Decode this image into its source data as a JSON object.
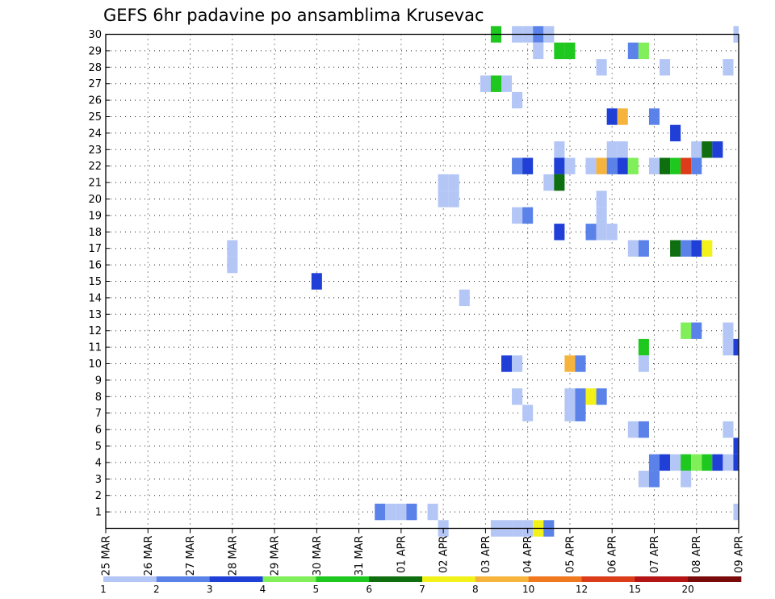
{
  "chart_data": {
    "type": "heatmap",
    "title": "GEFS 6hr padavine po ansamblima Krusevac",
    "xlabel": "",
    "ylabel": "",
    "x_start": "2025-03-25T00",
    "x_end": "2025-04-09T00",
    "x_step_hours": 6,
    "x_tick_labels": [
      "25 MAR",
      "26 MAR",
      "27 MAR",
      "28 MAR",
      "29 MAR",
      "30 MAR",
      "31 MAR",
      "01 APR",
      "02 APR",
      "03 APR",
      "04 APR",
      "05 APR",
      "06 APR",
      "07 APR",
      "08 APR",
      "09 APR"
    ],
    "y_tick_labels": [
      "1",
      "2",
      "3",
      "4",
      "5",
      "6",
      "7",
      "8",
      "9",
      "10",
      "11",
      "12",
      "13",
      "14",
      "15",
      "16",
      "17",
      "18",
      "19",
      "20",
      "21",
      "22",
      "23",
      "24",
      "25",
      "26",
      "27",
      "28",
      "29",
      "30"
    ],
    "ylim": [
      0,
      30
    ],
    "grid": true,
    "colorbar": {
      "labels": [
        "1",
        "2",
        "3",
        "4",
        "5",
        "6",
        "7",
        "8",
        "10",
        "12",
        "15",
        "20"
      ],
      "colors": [
        "#b3c6f5",
        "#5a82e8",
        "#1f3fd6",
        "#80ef5a",
        "#1ec81e",
        "#0f6e0f",
        "#f2f21a",
        "#f7b43c",
        "#f0781e",
        "#dc3c19",
        "#b41414",
        "#780a0a"
      ]
    },
    "cells": [
      [
        "2025-04-03T06",
        30,
        "#1ec81e"
      ],
      [
        "2025-04-03T18",
        30,
        "#b3c6f5"
      ],
      [
        "2025-04-04T00",
        30,
        "#b3c6f5"
      ],
      [
        "2025-04-04T06",
        30,
        "#5a82e8"
      ],
      [
        "2025-04-04T12",
        30,
        "#b3c6f5"
      ],
      [
        "2025-04-09T00",
        30,
        "#b3c6f5"
      ],
      [
        "2025-04-04T06",
        29,
        "#b3c6f5"
      ],
      [
        "2025-04-04T18",
        29,
        "#1ec81e"
      ],
      [
        "2025-04-05T00",
        29,
        "#1ec81e"
      ],
      [
        "2025-04-06T12",
        29,
        "#5a82e8"
      ],
      [
        "2025-04-06T18",
        29,
        "#80ef5a"
      ],
      [
        "2025-04-05T18",
        28,
        "#b3c6f5"
      ],
      [
        "2025-04-07T06",
        28,
        "#b3c6f5"
      ],
      [
        "2025-04-08T18",
        28,
        "#b3c6f5"
      ],
      [
        "2025-04-03T00",
        27,
        "#b3c6f5"
      ],
      [
        "2025-04-03T06",
        27,
        "#1ec81e"
      ],
      [
        "2025-04-03T12",
        27,
        "#b3c6f5"
      ],
      [
        "2025-04-03T18",
        26,
        "#b3c6f5"
      ],
      [
        "2025-04-06T00",
        25,
        "#1f3fd6"
      ],
      [
        "2025-04-06T06",
        25,
        "#f7b43c"
      ],
      [
        "2025-04-07T00",
        25,
        "#5a82e8"
      ],
      [
        "2025-04-07T12",
        24,
        "#1f3fd6"
      ],
      [
        "2025-04-04T18",
        23,
        "#b3c6f5"
      ],
      [
        "2025-04-06T00",
        23,
        "#b3c6f5"
      ],
      [
        "2025-04-06T06",
        23,
        "#b3c6f5"
      ],
      [
        "2025-04-08T00",
        23,
        "#b3c6f5"
      ],
      [
        "2025-04-08T06",
        23,
        "#0f6e0f"
      ],
      [
        "2025-04-08T12",
        23,
        "#1f3fd6"
      ],
      [
        "2025-04-03T18",
        22,
        "#5a82e8"
      ],
      [
        "2025-04-04T00",
        22,
        "#1f3fd6"
      ],
      [
        "2025-04-04T18",
        22,
        "#1f3fd6"
      ],
      [
        "2025-04-05T00",
        22,
        "#b3c6f5"
      ],
      [
        "2025-04-05T12",
        22,
        "#b3c6f5"
      ],
      [
        "2025-04-05T18",
        22,
        "#f7b43c"
      ],
      [
        "2025-04-06T00",
        22,
        "#5a82e8"
      ],
      [
        "2025-04-06T06",
        22,
        "#1f3fd6"
      ],
      [
        "2025-04-06T12",
        22,
        "#80ef5a"
      ],
      [
        "2025-04-07T00",
        22,
        "#b3c6f5"
      ],
      [
        "2025-04-07T06",
        22,
        "#0f6e0f"
      ],
      [
        "2025-04-07T12",
        22,
        "#1ec81e"
      ],
      [
        "2025-04-07T18",
        22,
        "#dc3c19"
      ],
      [
        "2025-04-08T00",
        22,
        "#5a82e8"
      ],
      [
        "2025-04-02T00",
        21,
        "#b3c6f5"
      ],
      [
        "2025-04-02T06",
        21,
        "#b3c6f5"
      ],
      [
        "2025-04-04T12",
        21,
        "#b3c6f5"
      ],
      [
        "2025-04-04T18",
        21,
        "#0f6e0f"
      ],
      [
        "2025-04-02T00",
        20,
        "#b3c6f5"
      ],
      [
        "2025-04-02T06",
        20,
        "#b3c6f5"
      ],
      [
        "2025-04-05T18",
        20,
        "#b3c6f5"
      ],
      [
        "2025-04-03T18",
        19,
        "#b3c6f5"
      ],
      [
        "2025-04-04T00",
        19,
        "#5a82e8"
      ],
      [
        "2025-04-05T18",
        19,
        "#b3c6f5"
      ],
      [
        "2025-04-04T18",
        18,
        "#1f3fd6"
      ],
      [
        "2025-04-05T12",
        18,
        "#5a82e8"
      ],
      [
        "2025-04-05T18",
        18,
        "#b3c6f5"
      ],
      [
        "2025-04-06T00",
        18,
        "#b3c6f5"
      ],
      [
        "2025-03-28T00",
        17,
        "#b3c6f5"
      ],
      [
        "2025-04-06T12",
        17,
        "#b3c6f5"
      ],
      [
        "2025-04-06T18",
        17,
        "#5a82e8"
      ],
      [
        "2025-04-07T12",
        17,
        "#0f6e0f"
      ],
      [
        "2025-04-07T18",
        17,
        "#5a82e8"
      ],
      [
        "2025-04-08T00",
        17,
        "#1f3fd6"
      ],
      [
        "2025-04-08T06",
        17,
        "#f2f21a"
      ],
      [
        "2025-03-28T00",
        16,
        "#b3c6f5"
      ],
      [
        "2025-03-30T00",
        15,
        "#1f3fd6"
      ],
      [
        "2025-04-02T12",
        14,
        "#b3c6f5"
      ],
      [
        "2025-04-07T18",
        12,
        "#80ef5a"
      ],
      [
        "2025-04-08T00",
        12,
        "#5a82e8"
      ],
      [
        "2025-04-08T18",
        12,
        "#b3c6f5"
      ],
      [
        "2025-04-06T18",
        11,
        "#1ec81e"
      ],
      [
        "2025-04-08T18",
        11,
        "#b3c6f5"
      ],
      [
        "2025-04-09T00",
        11,
        "#1f3fd6"
      ],
      [
        "2025-04-03T12",
        10,
        "#1f3fd6"
      ],
      [
        "2025-04-03T18",
        10,
        "#b3c6f5"
      ],
      [
        "2025-04-05T00",
        10,
        "#f7b43c"
      ],
      [
        "2025-04-05T06",
        10,
        "#5a82e8"
      ],
      [
        "2025-04-06T18",
        10,
        "#b3c6f5"
      ],
      [
        "2025-04-03T18",
        8,
        "#b3c6f5"
      ],
      [
        "2025-04-05T00",
        8,
        "#b3c6f5"
      ],
      [
        "2025-04-05T06",
        8,
        "#5a82e8"
      ],
      [
        "2025-04-05T12",
        8,
        "#f2f21a"
      ],
      [
        "2025-04-05T18",
        8,
        "#5a82e8"
      ],
      [
        "2025-04-04T00",
        7,
        "#b3c6f5"
      ],
      [
        "2025-04-05T00",
        7,
        "#b3c6f5"
      ],
      [
        "2025-04-05T06",
        7,
        "#5a82e8"
      ],
      [
        "2025-04-06T12",
        6,
        "#b3c6f5"
      ],
      [
        "2025-04-06T18",
        6,
        "#5a82e8"
      ],
      [
        "2025-04-08T18",
        6,
        "#b3c6f5"
      ],
      [
        "2025-04-09T00",
        5,
        "#1f3fd6"
      ],
      [
        "2025-04-07T00",
        4,
        "#5a82e8"
      ],
      [
        "2025-04-07T06",
        4,
        "#1f3fd6"
      ],
      [
        "2025-04-07T12",
        4,
        "#b3c6f5"
      ],
      [
        "2025-04-07T18",
        4,
        "#1ec81e"
      ],
      [
        "2025-04-08T00",
        4,
        "#80ef5a"
      ],
      [
        "2025-04-08T06",
        4,
        "#1ec81e"
      ],
      [
        "2025-04-08T12",
        4,
        "#1f3fd6"
      ],
      [
        "2025-04-08T18",
        4,
        "#b3c6f5"
      ],
      [
        "2025-04-09T00",
        4,
        "#1f3fd6"
      ],
      [
        "2025-04-06T18",
        3,
        "#b3c6f5"
      ],
      [
        "2025-04-07T00",
        3,
        "#5a82e8"
      ],
      [
        "2025-04-07T18",
        3,
        "#b3c6f5"
      ],
      [
        "2025-03-31T12",
        1,
        "#5a82e8"
      ],
      [
        "2025-03-31T18",
        1,
        "#b3c6f5"
      ],
      [
        "2025-04-01T00",
        1,
        "#b3c6f5"
      ],
      [
        "2025-04-01T06",
        1,
        "#5a82e8"
      ],
      [
        "2025-04-01T18",
        1,
        "#b3c6f5"
      ],
      [
        "2025-04-09T00",
        1,
        "#b3c6f5"
      ],
      [
        "2025-04-02T00",
        0,
        "#b3c6f5"
      ],
      [
        "2025-04-03T06",
        0,
        "#b3c6f5"
      ],
      [
        "2025-04-03T12",
        0,
        "#b3c6f5"
      ],
      [
        "2025-04-03T18",
        0,
        "#b3c6f5"
      ],
      [
        "2025-04-04T00",
        0,
        "#b3c6f5"
      ],
      [
        "2025-04-04T06",
        0,
        "#f2f21a"
      ],
      [
        "2025-04-04T12",
        0,
        "#5a82e8"
      ]
    ]
  }
}
